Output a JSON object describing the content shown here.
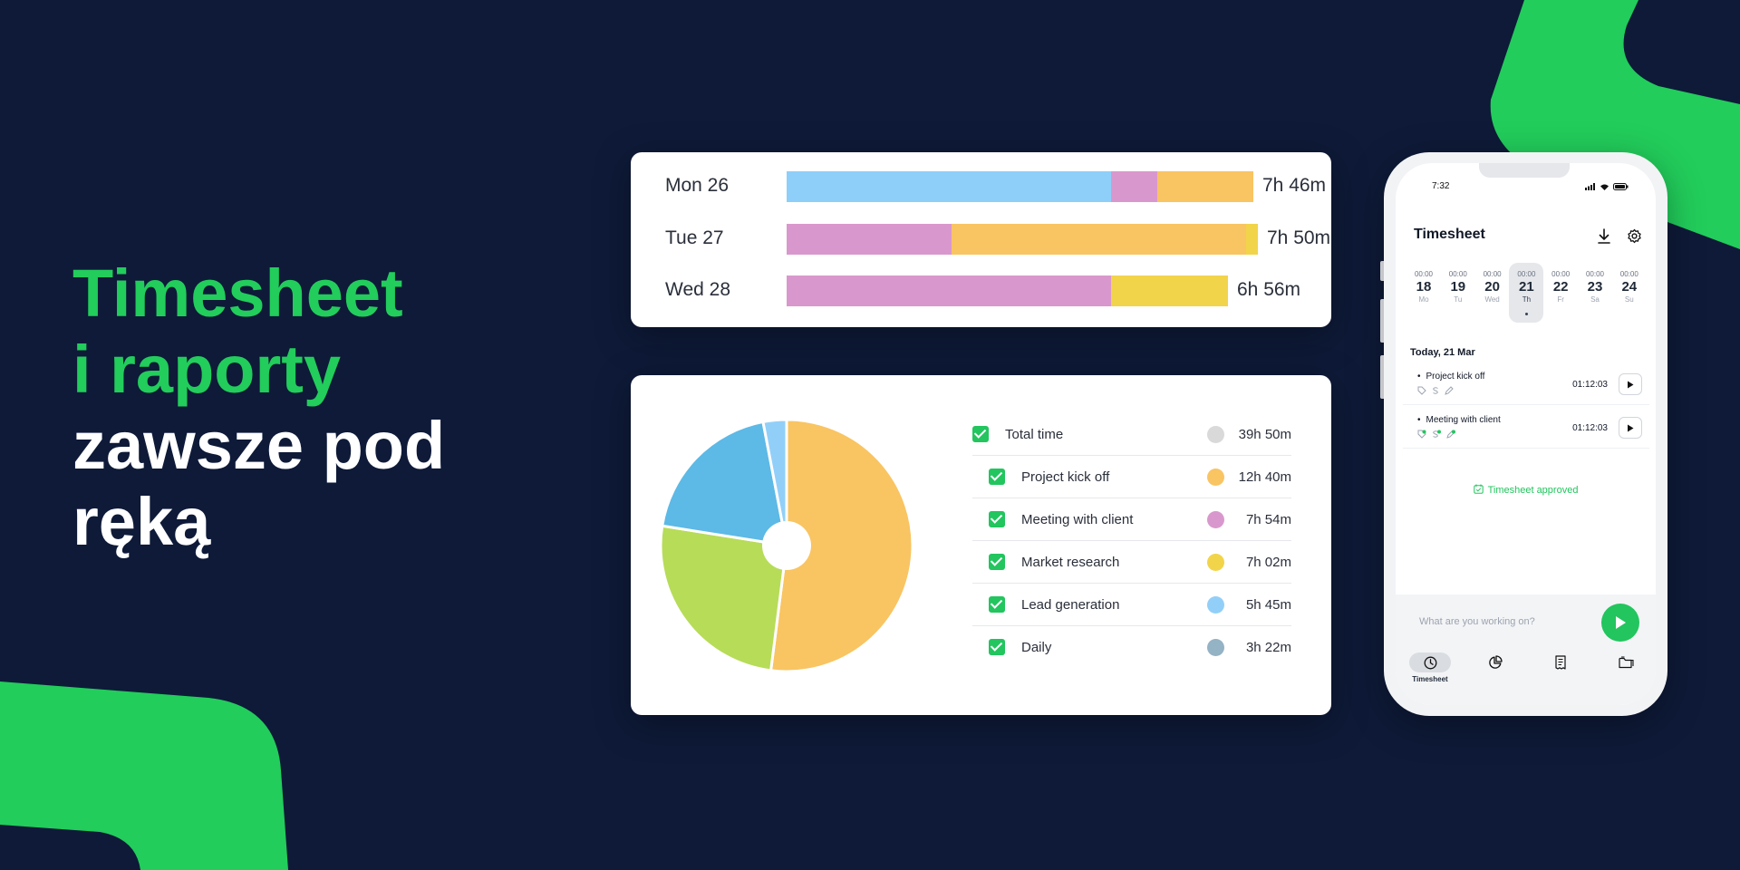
{
  "headline": {
    "line1": "Timesheet",
    "line2": "i raporty",
    "line3": "zawsze pod",
    "line4": "ręką"
  },
  "colors": {
    "background": "#0e1a38",
    "accent_green": "#22cd5b",
    "light_blue": "#8ecffa",
    "pink": "#d998cd",
    "orange": "#f9c462",
    "yellow": "#f2d44a"
  },
  "daily_bars": [
    {
      "day": "Mon 26",
      "total": "7h 46m",
      "segments": [
        {
          "color": "#8ecffa",
          "value": 0.695
        },
        {
          "color": "#d998cd",
          "value": 0.1
        },
        {
          "color": "#f9c462",
          "value": 0.205
        }
      ]
    },
    {
      "day": "Tue 27",
      "total": "7h 50m",
      "segments": [
        {
          "color": "#d998cd",
          "value": 0.35
        },
        {
          "color": "#f9c462",
          "value": 0.625
        },
        {
          "color": "#f2d44a",
          "value": 0.025
        }
      ]
    },
    {
      "day": "Wed 28",
      "total": "6h 56m",
      "segments": [
        {
          "color": "#d998cd",
          "value": 0.735
        },
        {
          "color": "#f2d44a",
          "value": 0.265
        }
      ]
    }
  ],
  "chart_data": {
    "type": "pie",
    "series": [
      {
        "name": "Project kick off",
        "value": 0.52,
        "color": "#f9c462"
      },
      {
        "name": "Lead generation",
        "value": 0.255,
        "color": "#b7dc58"
      },
      {
        "name": "Daily",
        "value": 0.195,
        "color": "#5db9e6"
      },
      {
        "name": "Market research",
        "value": 0.03,
        "color": "#92cff8"
      }
    ]
  },
  "legend": [
    {
      "label": "Total time",
      "value": "39h 50m",
      "color": "#d9d9d9",
      "sub": false
    },
    {
      "label": "Project kick off",
      "value": "12h 40m",
      "color": "#f9c462",
      "sub": true
    },
    {
      "label": "Meeting with client",
      "value": "7h 54m",
      "color": "#d998cd",
      "sub": true
    },
    {
      "label": "Market research",
      "value": "7h 02m",
      "color": "#f2d44a",
      "sub": true
    },
    {
      "label": "Lead generation",
      "value": "5h 45m",
      "color": "#92cff8",
      "sub": true
    },
    {
      "label": "Daily",
      "value": "3h 22m",
      "color": "#94b3c4",
      "sub": true
    }
  ],
  "phone": {
    "time": "7:32",
    "title": "Timesheet",
    "download_icon": "download-icon",
    "settings_icon": "gear-icon",
    "week": [
      {
        "time": "00:00",
        "num": "18",
        "day": "Mo",
        "selected": false
      },
      {
        "time": "00:00",
        "num": "19",
        "day": "Tu",
        "selected": false
      },
      {
        "time": "00:00",
        "num": "20",
        "day": "Wed",
        "selected": false
      },
      {
        "time": "00:00",
        "num": "21",
        "day": "Th",
        "selected": true
      },
      {
        "time": "00:00",
        "num": "22",
        "day": "Fr",
        "selected": false
      },
      {
        "time": "00:00",
        "num": "23",
        "day": "Sa",
        "selected": false
      },
      {
        "time": "00:00",
        "num": "24",
        "day": "Su",
        "selected": false
      }
    ],
    "today_label": "Today, 21 Mar",
    "entries": [
      {
        "name": "Project kick off",
        "time": "01:12:03"
      },
      {
        "name": "Meeting with client",
        "time": "01:12:03"
      }
    ],
    "approved": "Timesheet approved",
    "input_placeholder": "What are you working on?",
    "nav": [
      {
        "label": "Timesheet",
        "icon": "clock-icon",
        "active": true
      },
      {
        "label": "",
        "icon": "pie-chart-icon",
        "active": false
      },
      {
        "label": "",
        "icon": "receipt-icon",
        "active": false
      },
      {
        "label": "",
        "icon": "folder-icon",
        "active": false
      }
    ]
  }
}
